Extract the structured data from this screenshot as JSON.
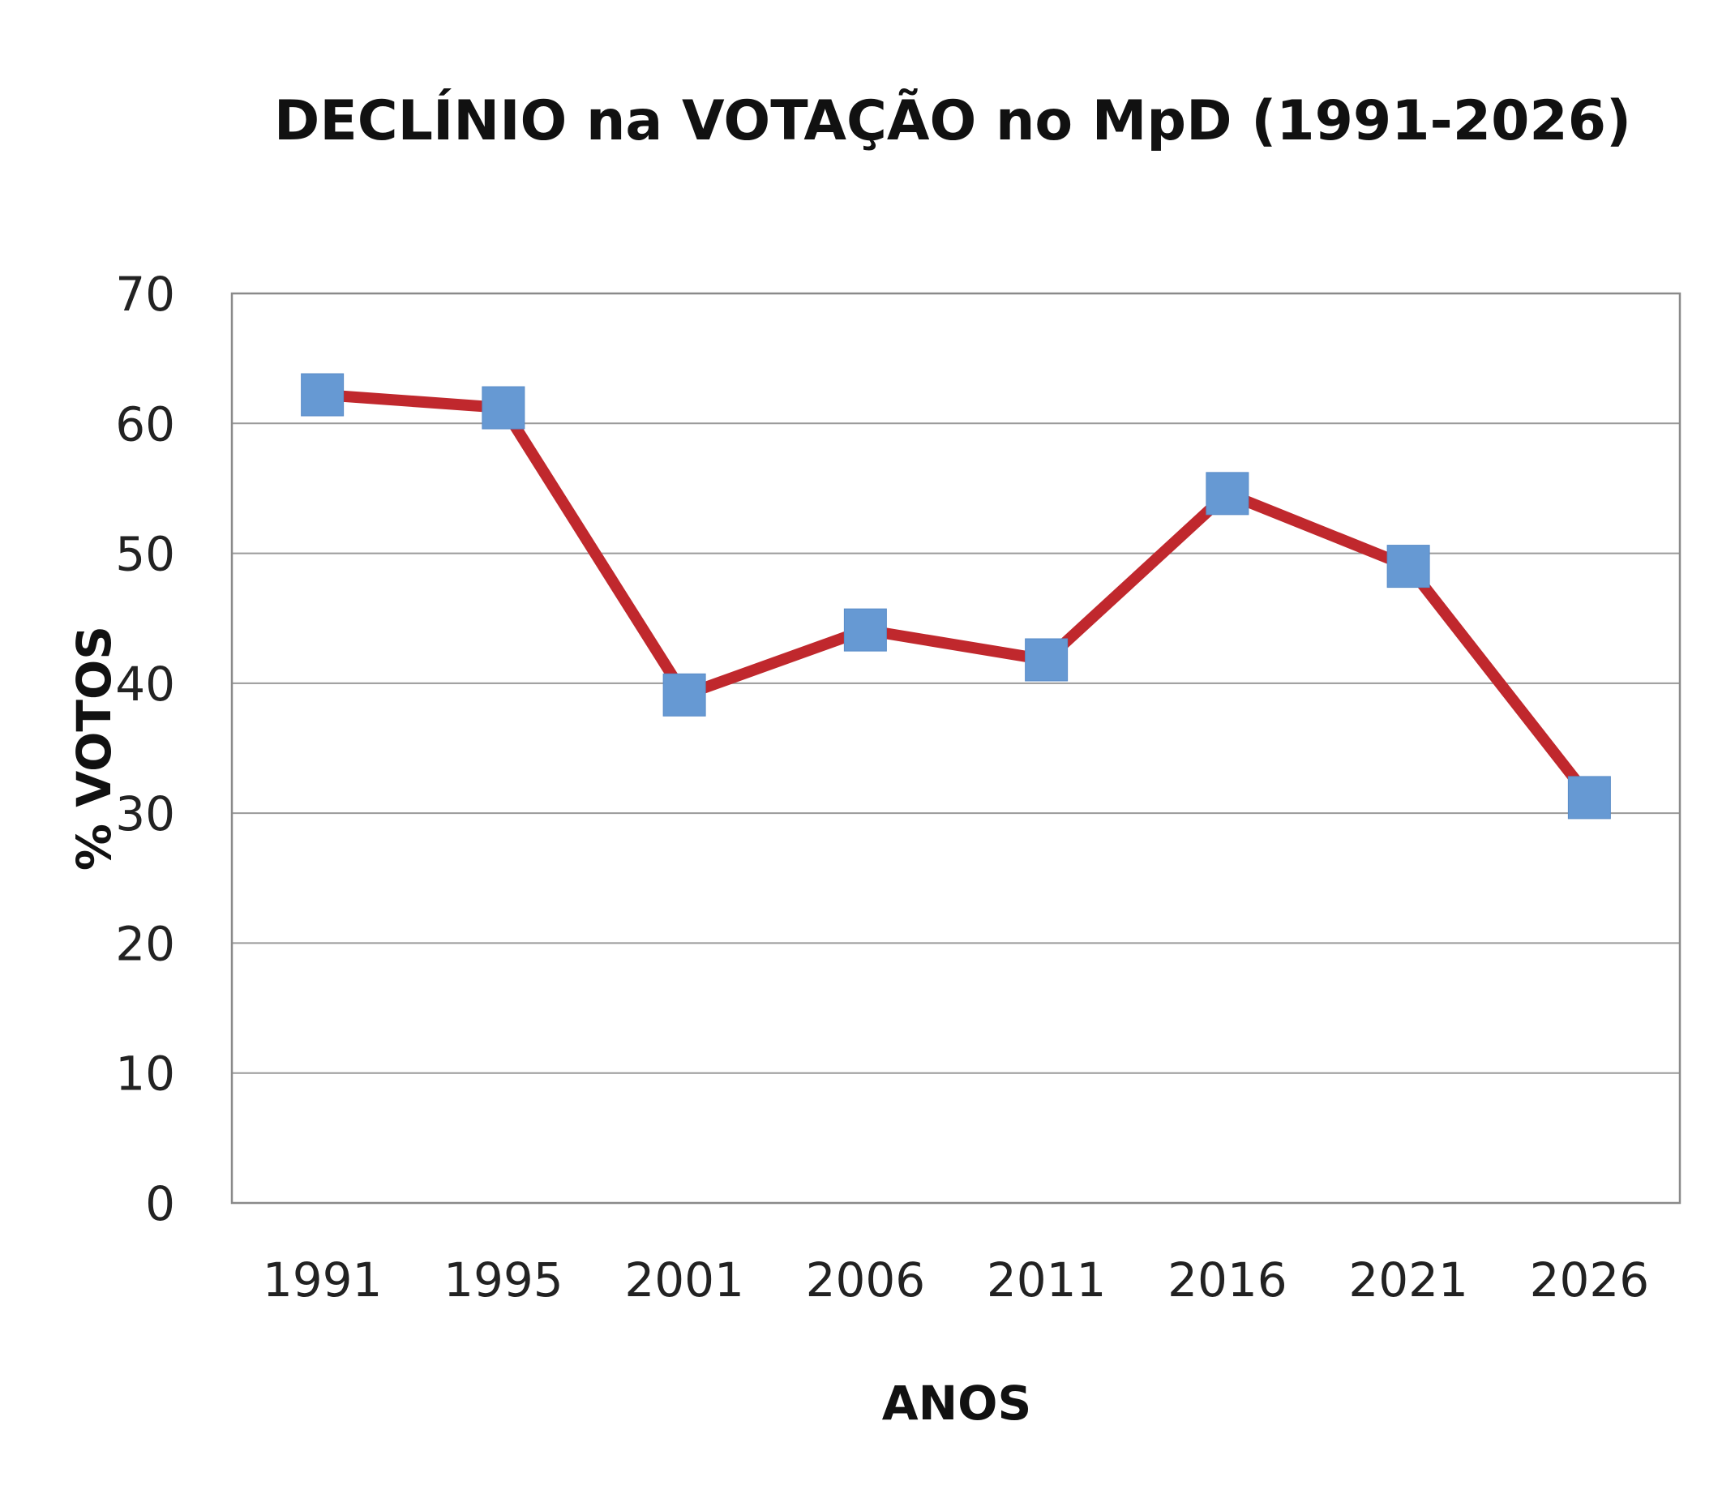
{
  "chart_data": {
    "type": "line",
    "title": "DECLÍNIO na VOTAÇÃO no MpD (1991-2026)",
    "xlabel": "ANOS",
    "ylabel": "% VOTOS",
    "categories": [
      "1991",
      "1995",
      "2001",
      "2006",
      "2011",
      "2016",
      "2021",
      "2026"
    ],
    "series": [
      {
        "name": "MpD",
        "values": [
          62.2,
          61.2,
          39.1,
          44.1,
          41.8,
          54.6,
          49.0,
          31.2
        ],
        "line_color": "#c0282d",
        "marker_color": "#6699d3",
        "marker": "square"
      }
    ],
    "yticks": [
      "0",
      "10",
      "20",
      "30",
      "40",
      "50",
      "60",
      "70"
    ],
    "ylim": [
      0,
      70
    ],
    "grid": true,
    "legend": "none"
  }
}
